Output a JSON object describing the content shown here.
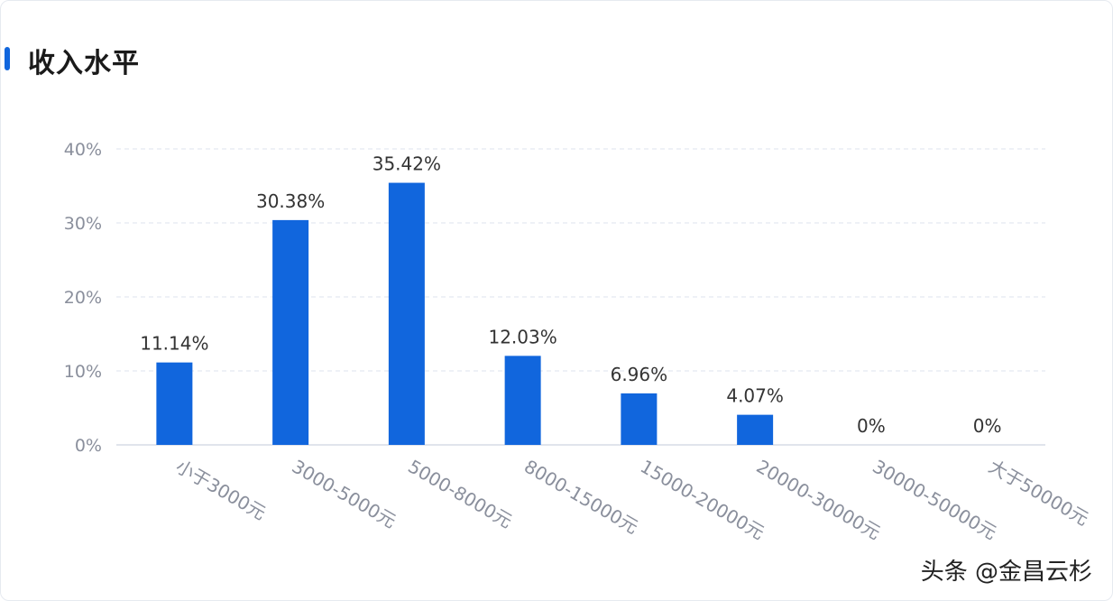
{
  "header": {
    "title": "收入水平"
  },
  "colors": {
    "bar": "#1166dd",
    "accent": "#1166dd",
    "grid": "#dde3ee",
    "axis": "#d5dbe6"
  },
  "chart_data": {
    "type": "bar",
    "title": "收入水平",
    "xlabel": "",
    "ylabel": "",
    "categories": [
      "小于3000元",
      "3000-5000元",
      "5000-8000元",
      "8000-15000元",
      "15000-20000元",
      "20000-30000元",
      "30000-50000元",
      "大于50000元"
    ],
    "values": [
      11.14,
      30.38,
      35.42,
      12.03,
      6.96,
      4.07,
      0,
      0
    ],
    "value_labels": [
      "11.14%",
      "30.38%",
      "35.42%",
      "12.03%",
      "6.96%",
      "4.07%",
      "0%",
      "0%"
    ],
    "ylim": [
      0,
      40
    ],
    "yticks": [
      "0%",
      "10%",
      "20%",
      "30%",
      "40%"
    ],
    "grid": true,
    "legend": "none"
  },
  "watermark": "头条 @金昌云杉"
}
